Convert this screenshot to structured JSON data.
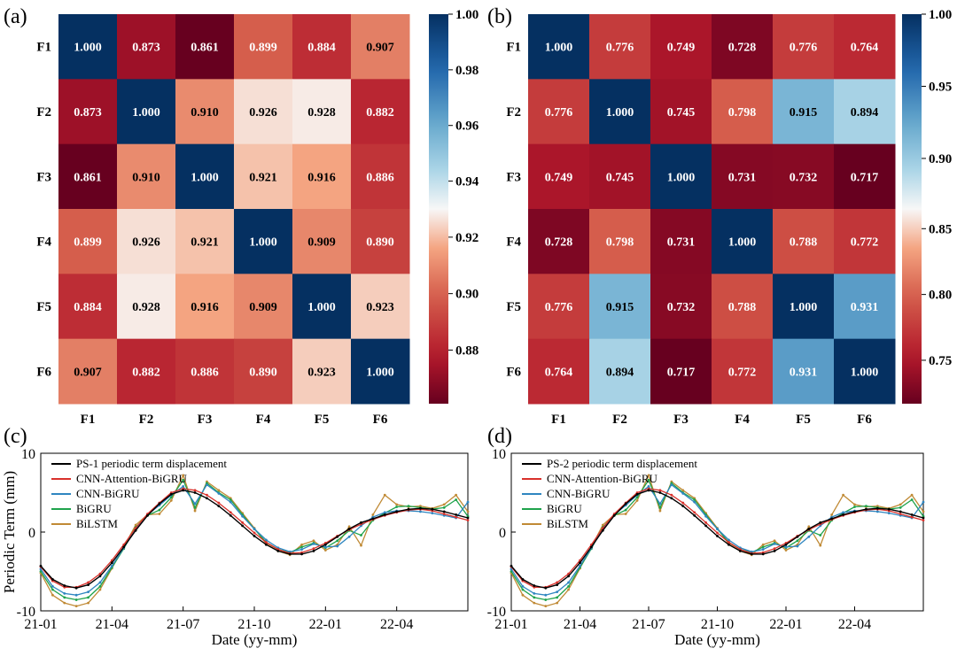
{
  "colors": {
    "black": "#000000",
    "red": "#d9312b",
    "blue": "#2f86c0",
    "green": "#1fa34c",
    "gold": "#c08a35"
  },
  "chart_data": [
    {
      "type": "heatmap",
      "panel": "(a)",
      "rows": [
        "F1",
        "F2",
        "F3",
        "F4",
        "F5",
        "F6"
      ],
      "cols": [
        "F1",
        "F2",
        "F3",
        "F4",
        "F5",
        "F6"
      ],
      "values": [
        [
          1.0,
          0.873,
          0.861,
          0.899,
          0.884,
          0.907
        ],
        [
          0.873,
          1.0,
          0.91,
          0.926,
          0.928,
          0.882
        ],
        [
          0.861,
          0.91,
          1.0,
          0.921,
          0.916,
          0.886
        ],
        [
          0.899,
          0.926,
          0.921,
          1.0,
          0.909,
          0.89
        ],
        [
          0.884,
          0.928,
          0.916,
          0.909,
          1.0,
          0.923
        ],
        [
          0.907,
          0.882,
          0.886,
          0.89,
          0.923,
          1.0
        ]
      ],
      "colorbar": {
        "min": 0.861,
        "max": 1.0,
        "center": 0.93,
        "ticks": [
          0.88,
          0.9,
          0.92,
          0.94,
          0.96,
          0.98,
          1.0
        ],
        "tick_labels": [
          "0.88",
          "0.90",
          "0.92",
          "0.94",
          "0.96",
          "0.98",
          "1.00"
        ]
      }
    },
    {
      "type": "heatmap",
      "panel": "(b)",
      "rows": [
        "F1",
        "F2",
        "F3",
        "F4",
        "F5",
        "F6"
      ],
      "cols": [
        "F1",
        "F2",
        "F3",
        "F4",
        "F5",
        "F6"
      ],
      "values": [
        [
          1.0,
          0.776,
          0.749,
          0.728,
          0.776,
          0.764
        ],
        [
          0.776,
          1.0,
          0.745,
          0.798,
          0.915,
          0.894
        ],
        [
          0.749,
          0.745,
          1.0,
          0.731,
          0.732,
          0.717
        ],
        [
          0.728,
          0.798,
          0.731,
          1.0,
          0.788,
          0.772
        ],
        [
          0.776,
          0.915,
          0.732,
          0.788,
          1.0,
          0.931
        ],
        [
          0.764,
          0.894,
          0.717,
          0.772,
          0.931,
          1.0
        ]
      ],
      "colorbar": {
        "min": 0.717,
        "max": 1.0,
        "center": 0.865,
        "ticks": [
          0.75,
          0.8,
          0.85,
          0.9,
          0.95,
          1.0
        ],
        "tick_labels": [
          "0.75",
          "0.80",
          "0.85",
          "0.90",
          "0.95",
          "1.00"
        ]
      }
    },
    {
      "type": "line",
      "panel": "(c)",
      "xlabel": "Date (yy-mm)",
      "ylabel": "Periodic Term (mm)",
      "xlim": [
        0,
        18
      ],
      "ylim": [
        -10,
        10
      ],
      "xticks": [
        0,
        3,
        6,
        9,
        12,
        15
      ],
      "xtick_labels": [
        "21-01",
        "21-04",
        "21-07",
        "21-10",
        "22-01",
        "22-04"
      ],
      "yticks": [
        -10,
        0,
        10
      ],
      "ytick_labels": [
        "-10",
        "0",
        "10"
      ],
      "x": [
        0,
        0.5,
        1,
        1.5,
        2,
        2.5,
        3,
        3.5,
        4,
        4.5,
        5,
        5.5,
        6,
        6.5,
        7,
        7.5,
        8,
        8.5,
        9,
        9.5,
        10,
        10.5,
        11,
        11.5,
        12,
        12.5,
        13,
        13.5,
        14,
        14.5,
        15,
        15.5,
        16,
        16.5,
        17,
        17.5,
        18
      ],
      "series": [
        {
          "name": "PS-1 periodic term displacement",
          "color": "black",
          "values": [
            -4.3,
            -6.0,
            -6.8,
            -7.1,
            -6.7,
            -5.6,
            -3.9,
            -1.9,
            0.2,
            2.1,
            3.6,
            4.8,
            5.3,
            5.0,
            4.3,
            3.3,
            2.1,
            0.8,
            -0.5,
            -1.6,
            -2.4,
            -2.8,
            -2.8,
            -2.4,
            -1.6,
            -0.6,
            0.4,
            1.2,
            1.7,
            2.2,
            2.6,
            2.9,
            3.0,
            2.9,
            2.6,
            2.2,
            1.8
          ]
        },
        {
          "name": "CNN-Attention-BiGRU",
          "color": "red",
          "values": [
            -4.4,
            -6.2,
            -7.0,
            -7.0,
            -6.4,
            -5.3,
            -3.6,
            -1.6,
            0.5,
            2.3,
            3.7,
            5.0,
            5.5,
            5.3,
            4.7,
            3.7,
            2.5,
            1.2,
            -0.1,
            -1.3,
            -2.2,
            -2.7,
            -2.6,
            -2.1,
            -1.4,
            -0.5,
            0.3,
            1.0,
            1.6,
            2.1,
            2.5,
            2.8,
            2.9,
            2.7,
            2.3,
            1.9,
            1.5
          ]
        },
        {
          "name": "CNN-BiGRU",
          "color": "blue",
          "values": [
            -4.7,
            -6.9,
            -7.8,
            -8.0,
            -7.6,
            -6.4,
            -4.3,
            -2.0,
            0.4,
            2.2,
            3.4,
            4.7,
            5.8,
            3.6,
            6.0,
            4.9,
            3.8,
            2.0,
            0.4,
            -1.0,
            -2.0,
            -2.5,
            -2.2,
            -1.5,
            -1.9,
            -1.8,
            -0.6,
            0.8,
            1.9,
            2.5,
            2.7,
            2.7,
            2.6,
            2.4,
            2.1,
            1.8,
            3.8
          ]
        },
        {
          "name": "BiGRU",
          "color": "green",
          "values": [
            -5.0,
            -7.3,
            -8.3,
            -8.6,
            -8.3,
            -6.9,
            -4.5,
            -2.1,
            0.6,
            2.1,
            2.8,
            4.4,
            6.6,
            3.1,
            6.2,
            5.0,
            4.1,
            2.2,
            0.4,
            -1.3,
            -2.2,
            -2.6,
            -1.9,
            -1.4,
            -2.0,
            -1.1,
            0.2,
            -0.4,
            1.5,
            2.4,
            3.2,
            3.3,
            3.1,
            2.9,
            3.1,
            4.1,
            2.0
          ]
        },
        {
          "name": "BiLSTM",
          "color": "gold",
          "values": [
            -5.2,
            -8.0,
            -9.0,
            -9.4,
            -9.0,
            -7.3,
            -4.6,
            -1.9,
            0.9,
            2.2,
            2.3,
            4.0,
            7.2,
            2.7,
            6.4,
            5.3,
            4.3,
            2.4,
            0.5,
            -1.5,
            -2.4,
            -2.9,
            -1.6,
            -1.1,
            -2.3,
            -1.6,
            0.7,
            -1.7,
            2.2,
            4.7,
            3.5,
            3.2,
            3.3,
            3.0,
            3.5,
            4.7,
            2.6
          ]
        }
      ]
    },
    {
      "type": "line",
      "panel": "(d)",
      "xlabel": "Date (yy-mm)",
      "ylabel": "",
      "xlim": [
        0,
        18
      ],
      "ylim": [
        -10,
        10
      ],
      "xticks": [
        0,
        3,
        6,
        9,
        12,
        15
      ],
      "xtick_labels": [
        "21-01",
        "21-04",
        "21-07",
        "21-10",
        "22-01",
        "22-04"
      ],
      "yticks": [
        -10,
        0,
        10
      ],
      "ytick_labels": [
        "-10",
        "0",
        "10"
      ],
      "x": [
        0,
        0.5,
        1,
        1.5,
        2,
        2.5,
        3,
        3.5,
        4,
        4.5,
        5,
        5.5,
        6,
        6.5,
        7,
        7.5,
        8,
        8.5,
        9,
        9.5,
        10,
        10.5,
        11,
        11.5,
        12,
        12.5,
        13,
        13.5,
        14,
        14.5,
        15,
        15.5,
        16,
        16.5,
        17,
        17.5,
        18
      ],
      "series": [
        {
          "name": "PS-2 periodic term displacement",
          "color": "black",
          "values": [
            -4.3,
            -6.0,
            -6.8,
            -7.1,
            -6.7,
            -5.6,
            -3.9,
            -1.9,
            0.2,
            2.1,
            3.6,
            4.8,
            5.3,
            5.0,
            4.3,
            3.3,
            2.1,
            0.8,
            -0.5,
            -1.6,
            -2.4,
            -2.8,
            -2.8,
            -2.4,
            -1.6,
            -0.6,
            0.4,
            1.2,
            1.7,
            2.2,
            2.6,
            2.9,
            3.0,
            2.9,
            2.6,
            2.2,
            1.8
          ]
        },
        {
          "name": "CNN-Attention-BiGRU",
          "color": "red",
          "values": [
            -4.4,
            -6.2,
            -7.0,
            -7.0,
            -6.4,
            -5.3,
            -3.6,
            -1.6,
            0.5,
            2.3,
            3.7,
            5.0,
            5.5,
            5.3,
            4.7,
            3.7,
            2.5,
            1.2,
            -0.1,
            -1.3,
            -2.2,
            -2.7,
            -2.6,
            -2.1,
            -1.4,
            -0.5,
            0.3,
            1.0,
            1.6,
            2.1,
            2.5,
            2.8,
            2.9,
            2.7,
            2.3,
            1.9,
            1.5
          ]
        },
        {
          "name": "CNN-BiGRU",
          "color": "blue",
          "values": [
            -4.7,
            -6.9,
            -7.8,
            -8.0,
            -7.6,
            -6.4,
            -4.3,
            -2.0,
            0.4,
            2.2,
            3.4,
            4.7,
            5.8,
            3.6,
            6.0,
            4.9,
            3.8,
            2.0,
            0.4,
            -1.0,
            -2.0,
            -2.5,
            -2.2,
            -1.5,
            -1.9,
            -1.8,
            -0.6,
            0.8,
            1.9,
            2.5,
            2.7,
            2.7,
            2.6,
            2.4,
            2.1,
            1.8,
            3.8
          ]
        },
        {
          "name": "BiGRU",
          "color": "green",
          "values": [
            -5.0,
            -7.3,
            -8.3,
            -8.6,
            -8.3,
            -6.9,
            -4.5,
            -2.1,
            0.6,
            2.1,
            2.8,
            4.4,
            6.6,
            3.1,
            6.2,
            5.0,
            4.1,
            2.2,
            0.4,
            -1.3,
            -2.2,
            -2.6,
            -1.9,
            -1.4,
            -2.0,
            -1.1,
            0.2,
            -0.4,
            1.5,
            2.4,
            3.2,
            3.3,
            3.1,
            2.9,
            3.1,
            4.1,
            2.0
          ]
        },
        {
          "name": "BiLSTM",
          "color": "gold",
          "values": [
            -5.2,
            -8.0,
            -9.0,
            -9.4,
            -9.0,
            -7.3,
            -4.6,
            -1.9,
            0.9,
            2.2,
            2.3,
            4.0,
            7.2,
            2.7,
            6.4,
            5.3,
            4.3,
            2.4,
            0.5,
            -1.5,
            -2.4,
            -2.9,
            -1.6,
            -1.1,
            -2.3,
            -1.6,
            0.7,
            -1.7,
            2.2,
            4.7,
            3.5,
            3.2,
            3.3,
            3.0,
            3.5,
            4.7,
            2.6
          ]
        }
      ]
    }
  ]
}
